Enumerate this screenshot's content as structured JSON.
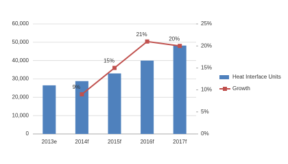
{
  "chart_data": {
    "type": "bar-line",
    "categories": [
      "2013e",
      "2014f",
      "2015f",
      "2016f",
      "2017f"
    ],
    "series": [
      {
        "name": "Heat Interface Units",
        "color": "#4f81bd",
        "type": "bar",
        "values": [
          26500,
          28800,
          33000,
          40000,
          48200
        ]
      },
      {
        "name": "Growth",
        "color": "#c0504d",
        "type": "line",
        "axis": "y2",
        "values": [
          null,
          9,
          15,
          21,
          20
        ],
        "value_labels": [
          null,
          "9%",
          "15%",
          "21%",
          "20%"
        ]
      }
    ],
    "ylim": [
      0,
      60000
    ],
    "yticks": [
      0,
      {
        "value": 10000,
        "label": "10,000"
      },
      {
        "value": 20000,
        "label": "20,000"
      },
      {
        "value": 30000,
        "label": "30,000"
      },
      {
        "value": 40000,
        "label": "40,000"
      },
      {
        "value": 50000,
        "label": "50,000"
      },
      {
        "value": 60000,
        "label": "60,000"
      }
    ],
    "y2lim": [
      0,
      25
    ],
    "y2ticks": [
      {
        "value": 0,
        "label": "0%"
      },
      {
        "value": 5,
        "label": "5%"
      },
      {
        "value": 10,
        "label": "10%"
      },
      {
        "value": 15,
        "label": "15%"
      },
      {
        "value": 20,
        "label": "20%"
      },
      {
        "value": 25,
        "label": "25%"
      }
    ],
    "grid": true,
    "legend": "right"
  }
}
